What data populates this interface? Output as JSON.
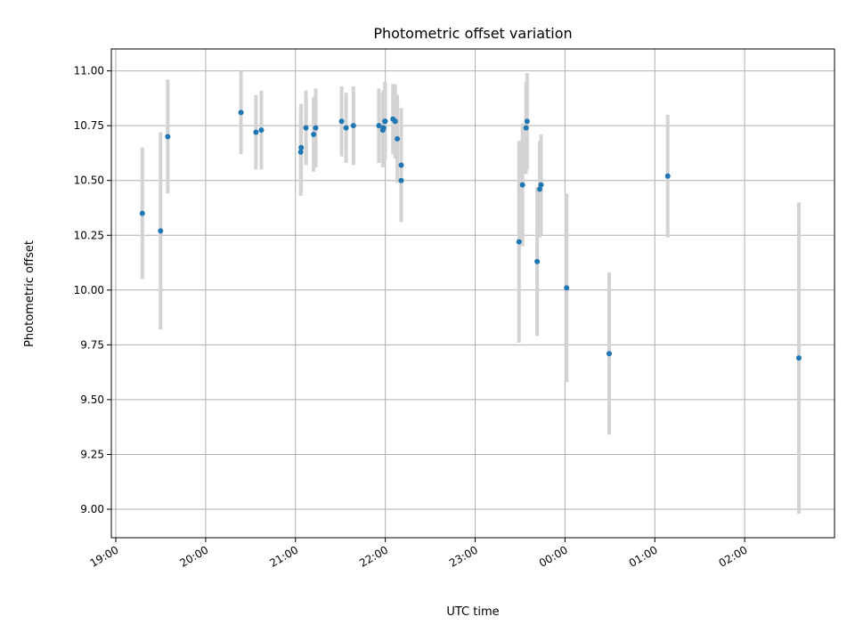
{
  "chart_data": {
    "type": "scatter",
    "title": "Photometric offset variation",
    "xlabel": "UTC time",
    "ylabel": "Photometric offset",
    "x_unit": "minutes since 19:00 UTC",
    "xlim": [
      -3,
      480
    ],
    "ylim": [
      8.87,
      11.1
    ],
    "grid": true,
    "legend": null,
    "x_ticks": [
      {
        "value": 0,
        "label": "19:00"
      },
      {
        "value": 60,
        "label": "20:00"
      },
      {
        "value": 120,
        "label": "21:00"
      },
      {
        "value": 180,
        "label": "22:00"
      },
      {
        "value": 240,
        "label": "23:00"
      },
      {
        "value": 300,
        "label": "00:00"
      },
      {
        "value": 360,
        "label": "01:00"
      },
      {
        "value": 420,
        "label": "02:00"
      }
    ],
    "y_ticks": [
      {
        "value": 9.0,
        "label": "9.00"
      },
      {
        "value": 9.25,
        "label": "9.25"
      },
      {
        "value": 9.5,
        "label": "9.50"
      },
      {
        "value": 9.75,
        "label": "9.75"
      },
      {
        "value": 10.0,
        "label": "10.00"
      },
      {
        "value": 10.25,
        "label": "10.25"
      },
      {
        "value": 10.5,
        "label": "10.50"
      },
      {
        "value": 10.75,
        "label": "10.75"
      },
      {
        "value": 11.0,
        "label": "11.00"
      }
    ],
    "point_color": "#1f77b4",
    "errorbar_color": "#d3d3d3",
    "series": [
      {
        "name": "Photometric offset",
        "x": [
          17.7,
          29.9,
          34.7,
          83.6,
          93.6,
          97.2,
          123.5,
          123.8,
          127.0,
          132.1,
          133.5,
          150.8,
          153.8,
          158.7,
          175.7,
          178.3,
          178.8,
          178.8,
          179.7,
          179.9,
          185.1,
          186.6,
          188.0,
          190.6,
          190.6,
          269.3,
          271.6,
          274.0,
          274.7,
          281.4,
          283.1,
          284.0,
          301.1,
          329.5,
          368.6,
          456.2
        ],
        "y": [
          10.35,
          10.27,
          10.7,
          10.81,
          10.72,
          10.73,
          10.63,
          10.65,
          10.74,
          10.71,
          10.74,
          10.77,
          10.74,
          10.75,
          10.75,
          10.73,
          10.74,
          10.74,
          10.77,
          10.77,
          10.78,
          10.77,
          10.69,
          10.57,
          10.5,
          10.22,
          10.48,
          10.74,
          10.77,
          10.13,
          10.46,
          10.48,
          10.01,
          9.71,
          10.52,
          9.69
        ],
        "err": [
          0.3,
          0.45,
          0.26,
          0.19,
          0.17,
          0.18,
          0.2,
          0.2,
          0.17,
          0.17,
          0.18,
          0.16,
          0.16,
          0.18,
          0.17,
          0.17,
          0.17,
          0.17,
          0.18,
          0.17,
          0.16,
          0.17,
          0.2,
          0.26,
          0.15,
          0.46,
          0.28,
          0.21,
          0.22,
          0.34,
          0.22,
          0.23,
          0.43,
          0.37,
          0.28,
          0.71
        ]
      }
    ]
  }
}
